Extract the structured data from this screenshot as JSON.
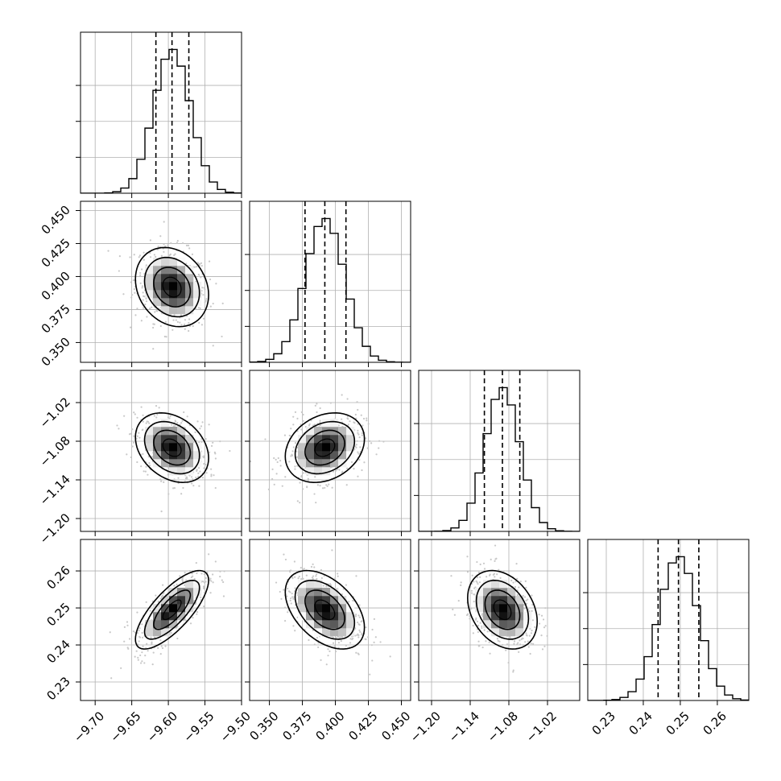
{
  "chart_data": {
    "type": "corner",
    "grid": true,
    "parameters": [
      {
        "range": [
          -9.72,
          -9.5
        ],
        "ticks": [
          -9.7,
          -9.65,
          -9.6,
          -9.55,
          -9.5
        ],
        "tick_labels": [
          "−9.70",
          "−9.65",
          "−9.60",
          "−9.55",
          "−9.50"
        ],
        "mean": -9.595,
        "sigma": 0.025,
        "quantiles": [
          -9.617,
          -9.595,
          -9.572
        ]
      },
      {
        "range": [
          0.335,
          0.457
        ],
        "ticks": [
          0.35,
          0.375,
          0.4,
          0.425,
          0.45
        ],
        "tick_labels": [
          "0.350",
          "0.375",
          "0.400",
          "0.425",
          "0.450"
        ],
        "mean": 0.392,
        "sigma": 0.015,
        "quantiles": [
          0.377,
          0.392,
          0.408
        ]
      },
      {
        "range": [
          -1.22,
          -0.97
        ],
        "ticks": [
          -1.2,
          -1.14,
          -1.08,
          -1.02
        ],
        "tick_labels": [
          "−1.20",
          "−1.14",
          "−1.08",
          "−1.02"
        ],
        "mean": -1.09,
        "sigma": 0.027,
        "quantiles": [
          -1.118,
          -1.09,
          -1.063
        ]
      },
      {
        "range": [
          0.225,
          0.2685
        ],
        "ticks": [
          0.23,
          0.24,
          0.25,
          0.26
        ],
        "tick_labels": [
          "0.23",
          "0.24",
          "0.25",
          "0.26"
        ],
        "mean": 0.2495,
        "sigma": 0.0053,
        "quantiles": [
          0.244,
          0.2495,
          0.255
        ]
      }
    ],
    "correlations": [
      {
        "pair": [
          1,
          0
        ],
        "rho": -0.2
      },
      {
        "pair": [
          2,
          0
        ],
        "rho": -0.3
      },
      {
        "pair": [
          2,
          1
        ],
        "rho": 0.25
      },
      {
        "pair": [
          3,
          0
        ],
        "rho": 0.75
      },
      {
        "pair": [
          3,
          1
        ],
        "rho": -0.45
      },
      {
        "pair": [
          3,
          2
        ],
        "rho": -0.3
      }
    ],
    "histogram_bins": 20,
    "contour_levels": [
      0.5,
      1.0,
      1.5,
      2.0
    ],
    "colors": {
      "line": "#000000",
      "points": "#c8c8c8",
      "grid": "#b0b0b0"
    }
  }
}
